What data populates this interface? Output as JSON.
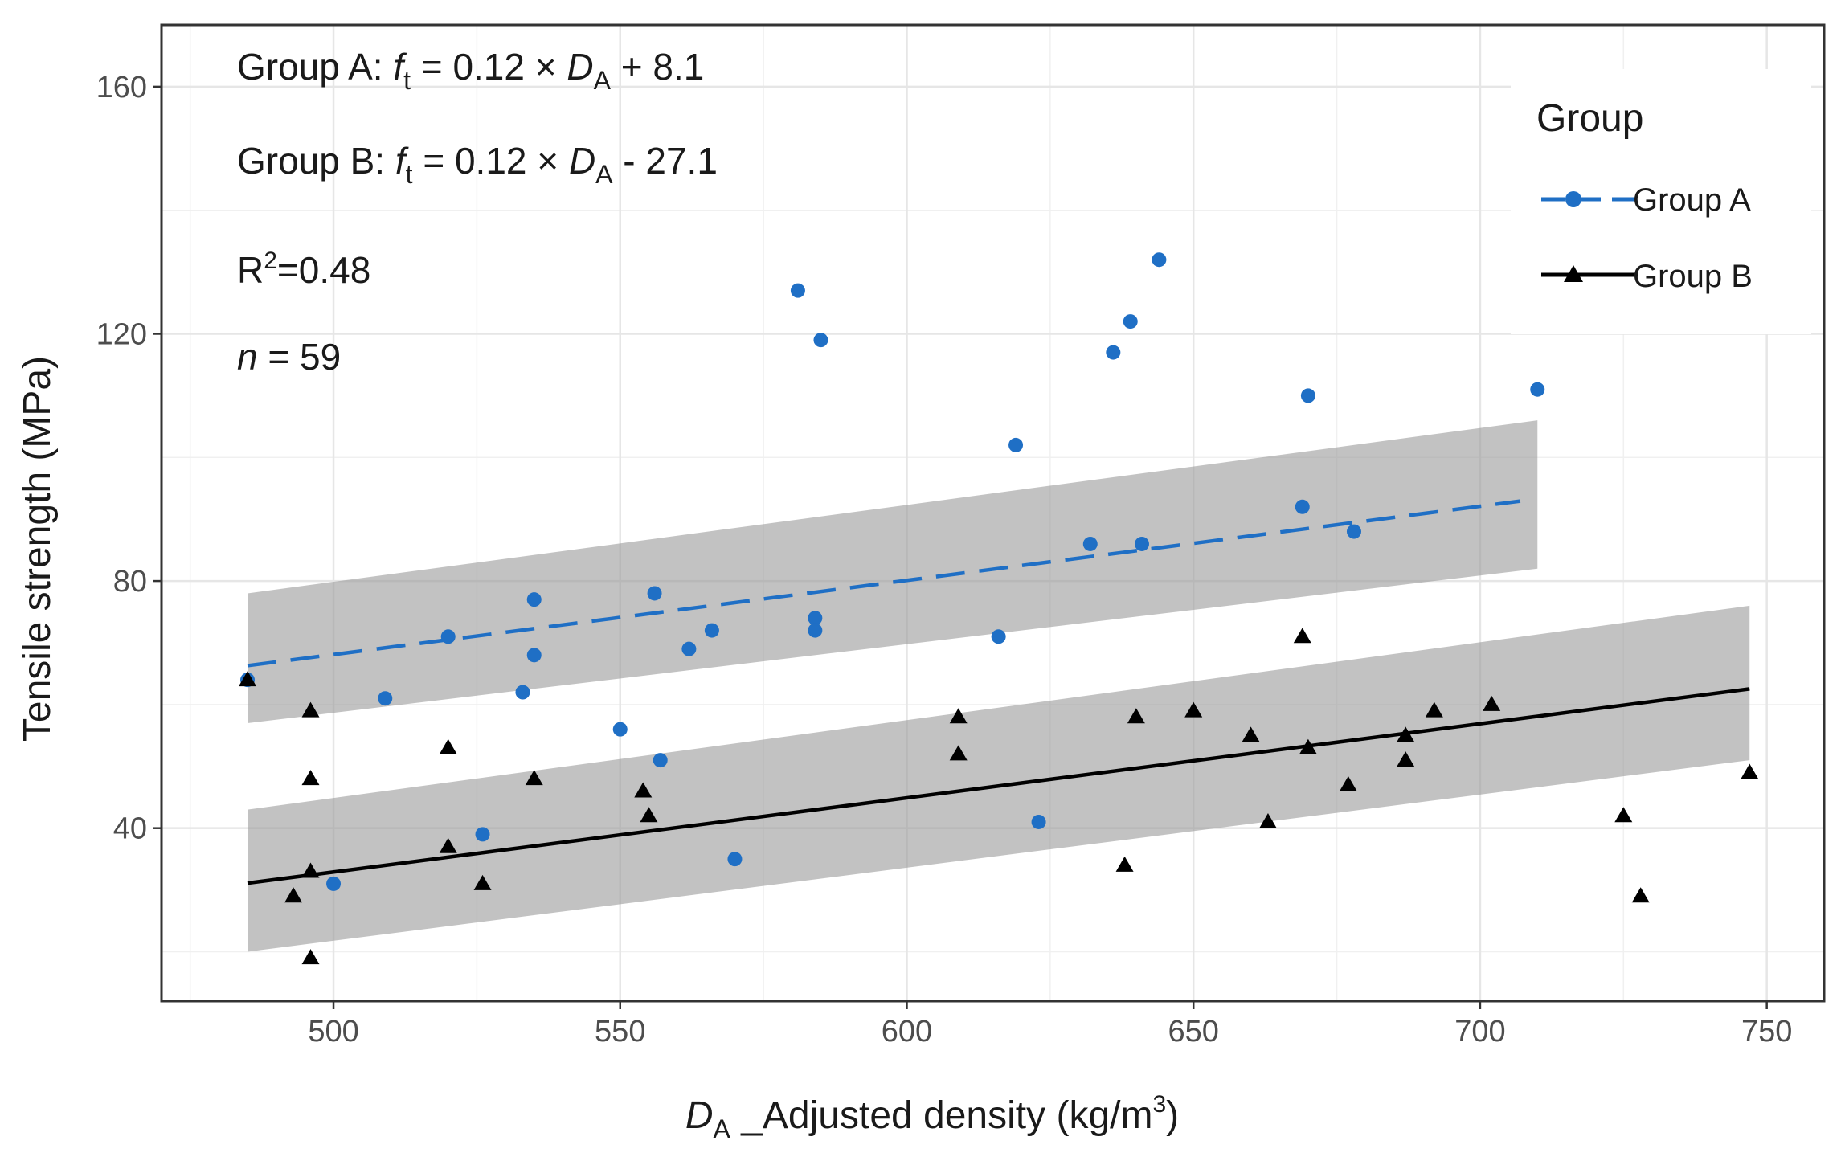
{
  "chart_data": {
    "type": "scatter",
    "x_axis": {
      "var": "D",
      "sub": "A",
      "rest": " _Adjusted density (kg/m",
      "sup": "3",
      "close": ")"
    },
    "ylabel": "Tensile strength (MPa)",
    "xlim": [
      470,
      760
    ],
    "ylim": [
      12,
      170
    ],
    "x_ticks": [
      500,
      550,
      600,
      650,
      700,
      750
    ],
    "y_ticks": [
      40,
      80,
      120,
      160
    ],
    "grid": true,
    "legend": {
      "title": "Group",
      "position": "right"
    },
    "annotations": {
      "eqA": {
        "prefix": "Group A: ",
        "var": "f",
        "sub": "t",
        "mid": " = 0.12 × ",
        "var2": "D",
        "sub2": "A",
        "suffix": " + 8.1"
      },
      "eqB": {
        "prefix": "Group B: ",
        "var": "f",
        "sub": "t",
        "mid": " = 0.12 × ",
        "var2": "D",
        "sub2": "A",
        "suffix": " - 27.1"
      },
      "r2": {
        "prefix": "R",
        "sup": "2",
        "suffix": "=0.48"
      },
      "n": {
        "var": "n",
        "suffix": " = 59"
      }
    },
    "series": [
      {
        "name": "Group A",
        "color": "#1f6fc5",
        "marker": "circle",
        "line_style": "dashed",
        "fit": {
          "intercept": 8.1,
          "slope": 0.12,
          "x_range": [
            485,
            707
          ]
        },
        "ci_band": {
          "lower": [
            [
              485,
              57
            ],
            [
              710,
              82
            ]
          ],
          "upper": [
            [
              485,
              78
            ],
            [
              710,
              106
            ]
          ]
        },
        "points": [
          [
            485,
            64
          ],
          [
            500,
            31
          ],
          [
            509,
            61
          ],
          [
            520,
            71
          ],
          [
            526,
            39
          ],
          [
            533,
            62
          ],
          [
            535,
            77
          ],
          [
            535,
            68
          ],
          [
            550,
            56
          ],
          [
            556,
            78
          ],
          [
            557,
            51
          ],
          [
            562,
            69
          ],
          [
            566,
            72
          ],
          [
            570,
            35
          ],
          [
            581,
            127
          ],
          [
            584,
            74
          ],
          [
            584,
            72
          ],
          [
            585,
            119
          ],
          [
            616,
            71
          ],
          [
            619,
            102
          ],
          [
            623,
            41
          ],
          [
            632,
            86
          ],
          [
            636,
            117
          ],
          [
            639,
            122
          ],
          [
            641,
            86
          ],
          [
            644,
            132
          ],
          [
            669,
            92
          ],
          [
            670,
            110
          ],
          [
            678,
            88
          ],
          [
            710,
            111
          ]
        ]
      },
      {
        "name": "Group B",
        "color": "#000000",
        "marker": "triangle",
        "line_style": "solid",
        "fit": {
          "intercept": -27.1,
          "slope": 0.12,
          "x_range": [
            485,
            747
          ]
        },
        "ci_band": {
          "lower": [
            [
              485,
              20
            ],
            [
              747,
              51
            ]
          ],
          "upper": [
            [
              485,
              43
            ],
            [
              747,
              76
            ]
          ]
        },
        "points": [
          [
            485,
            64
          ],
          [
            493,
            29
          ],
          [
            496,
            19
          ],
          [
            496,
            59
          ],
          [
            496,
            48
          ],
          [
            496,
            33
          ],
          [
            520,
            53
          ],
          [
            520,
            37
          ],
          [
            526,
            31
          ],
          [
            535,
            48
          ],
          [
            554,
            46
          ],
          [
            555,
            42
          ],
          [
            609,
            58
          ],
          [
            609,
            52
          ],
          [
            638,
            34
          ],
          [
            640,
            58
          ],
          [
            650,
            59
          ],
          [
            660,
            55
          ],
          [
            663,
            41
          ],
          [
            669,
            71
          ],
          [
            670,
            53
          ],
          [
            677,
            47
          ],
          [
            687,
            55
          ],
          [
            687,
            51
          ],
          [
            692,
            59
          ],
          [
            702,
            60
          ],
          [
            725,
            42
          ],
          [
            728,
            29
          ],
          [
            747,
            49
          ]
        ]
      }
    ]
  }
}
